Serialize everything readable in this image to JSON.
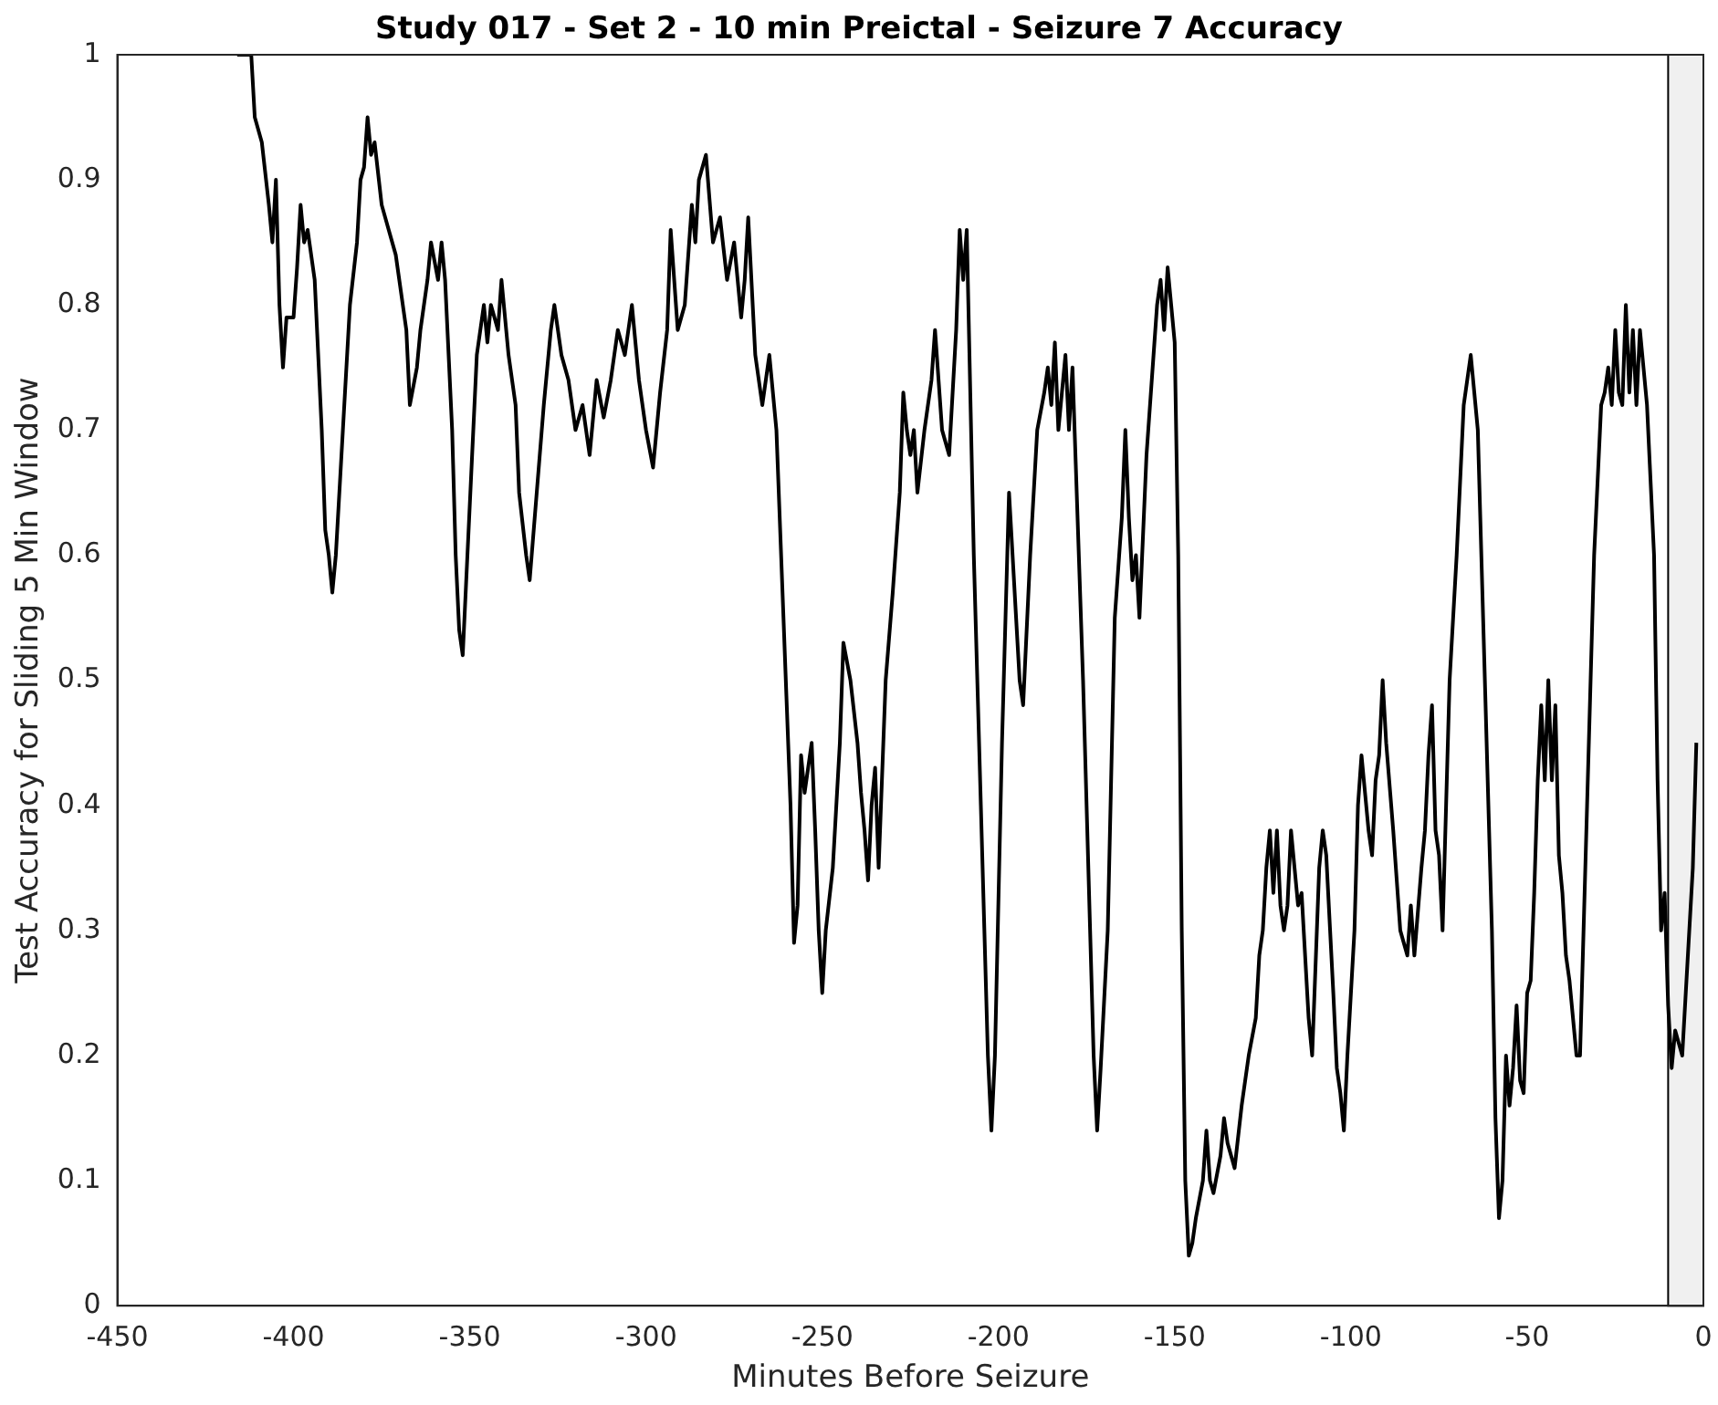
{
  "chart_data": {
    "type": "line",
    "title": "Study 017 - Set 2 - 10 min Preictal -  Seizure 7 Accuracy",
    "xlabel": "Minutes Before Seizure",
    "ylabel": "Test Accuracy for Sliding 5 Min Window",
    "xlim": [
      -450,
      0
    ],
    "xticks": [
      -450,
      -400,
      -350,
      -300,
      -250,
      -200,
      -150,
      -100,
      -50,
      0
    ],
    "ylim": [
      0,
      1
    ],
    "yticks": [
      0,
      0.1,
      0.2,
      0.3,
      0.4,
      0.5,
      0.6,
      0.7,
      0.8,
      0.9,
      1
    ],
    "grid": false,
    "legend": false,
    "marker": "none",
    "line_style": "solid",
    "bands": [
      {
        "axis": "x",
        "from": -10,
        "to": 0,
        "color": "#f0f0f0"
      }
    ],
    "series": [
      {
        "color": "#000000",
        "x": [
          -416,
          -412,
          -411,
          -409,
          -407,
          -406,
          -405,
          -404,
          -403,
          -402,
          -400,
          -399,
          -398,
          -397,
          -396,
          -394,
          -392,
          -391,
          -390,
          -389,
          -388,
          -386,
          -384,
          -382,
          -381,
          -380,
          -379,
          -378,
          -377,
          -375,
          -373,
          -371,
          -369,
          -368,
          -367,
          -365,
          -364,
          -362,
          -361,
          -359,
          -358,
          -357,
          -355,
          -354,
          -353,
          -352,
          -351,
          -349,
          -348,
          -346,
          -345,
          -344,
          -342,
          -341,
          -339,
          -337,
          -336,
          -334,
          -333,
          -331,
          -329,
          -327,
          -326,
          -324,
          -322,
          -320,
          -318,
          -316,
          -314,
          -312,
          -310,
          -308,
          -306,
          -304,
          -302,
          -300,
          -298,
          -296,
          -294,
          -293,
          -291,
          -289,
          -287,
          -286,
          -285,
          -283,
          -281,
          -279,
          -277,
          -275,
          -273,
          -272,
          -271,
          -269,
          -267,
          -265,
          -263,
          -261,
          -259,
          -258,
          -257,
          -256,
          -255,
          -253,
          -252,
          -251,
          -250,
          -249,
          -247,
          -245,
          -244,
          -242,
          -240,
          -239,
          -238,
          -237,
          -236,
          -235,
          -234,
          -232,
          -230,
          -228,
          -227,
          -226,
          -225,
          -224,
          -223,
          -221,
          -219,
          -218,
          -216,
          -214,
          -212,
          -211,
          -210,
          -209,
          -207,
          -205,
          -203,
          -202,
          -201,
          -199,
          -198,
          -197,
          -196,
          -195,
          -194,
          -193,
          -191,
          -189,
          -187,
          -186,
          -185,
          -184,
          -183,
          -182,
          -181,
          -180,
          -179,
          -176,
          -174,
          -173,
          -172,
          -171,
          -169,
          -167,
          -165,
          -164,
          -163,
          -162,
          -161,
          -160,
          -158,
          -156,
          -155,
          -154,
          -153,
          -152,
          -151,
          -150,
          -149,
          -148,
          -147,
          -146,
          -145,
          -144,
          -142,
          -141,
          -140,
          -139,
          -137,
          -136,
          -135,
          -134,
          -133,
          -131,
          -129,
          -127,
          -126,
          -125,
          -124,
          -123,
          -122,
          -121,
          -120,
          -119,
          -118,
          -117,
          -115,
          -114,
          -112,
          -111,
          -109,
          -108,
          -107,
          -105,
          -104,
          -103,
          -102,
          -101,
          -99,
          -98,
          -97,
          -95,
          -94,
          -93,
          -92,
          -91,
          -90,
          -88,
          -86,
          -84,
          -83,
          -82,
          -80,
          -79,
          -78,
          -77,
          -76,
          -75,
          -74,
          -73,
          -72,
          -70,
          -68,
          -67,
          -66,
          -65,
          -64,
          -62,
          -60,
          -59,
          -58,
          -57,
          -56,
          -55,
          -54,
          -53,
          -52,
          -51,
          -50,
          -49,
          -48,
          -47,
          -46,
          -45,
          -44,
          -43,
          -42,
          -41,
          -40,
          -39,
          -38,
          -36,
          -35,
          -34,
          -33,
          -31,
          -29,
          -28,
          -27,
          -26,
          -25,
          -24,
          -23,
          -22,
          -21,
          -20,
          -19,
          -18,
          -16,
          -14,
          -13,
          -12,
          -11,
          -10,
          -9,
          -8,
          -6,
          -5,
          -3,
          -2
        ],
        "values": [
          1,
          1,
          0.95,
          0.93,
          0.88,
          0.85,
          0.9,
          0.8,
          0.75,
          0.79,
          0.79,
          0.83,
          0.88,
          0.85,
          0.86,
          0.82,
          0.7,
          0.62,
          0.6,
          0.57,
          0.6,
          0.7,
          0.8,
          0.85,
          0.9,
          0.91,
          0.95,
          0.92,
          0.93,
          0.88,
          0.86,
          0.84,
          0.8,
          0.78,
          0.72,
          0.75,
          0.78,
          0.82,
          0.85,
          0.82,
          0.85,
          0.82,
          0.7,
          0.6,
          0.54,
          0.52,
          0.58,
          0.7,
          0.76,
          0.8,
          0.77,
          0.8,
          0.78,
          0.82,
          0.76,
          0.72,
          0.65,
          0.6,
          0.58,
          0.65,
          0.72,
          0.78,
          0.8,
          0.76,
          0.74,
          0.7,
          0.72,
          0.68,
          0.74,
          0.71,
          0.74,
          0.78,
          0.76,
          0.8,
          0.74,
          0.7,
          0.67,
          0.73,
          0.78,
          0.86,
          0.78,
          0.8,
          0.88,
          0.85,
          0.9,
          0.92,
          0.85,
          0.87,
          0.82,
          0.85,
          0.79,
          0.82,
          0.87,
          0.76,
          0.72,
          0.76,
          0.7,
          0.55,
          0.4,
          0.29,
          0.32,
          0.44,
          0.41,
          0.45,
          0.38,
          0.3,
          0.25,
          0.3,
          0.35,
          0.45,
          0.53,
          0.5,
          0.45,
          0.41,
          0.38,
          0.34,
          0.4,
          0.43,
          0.35,
          0.5,
          0.57,
          0.65,
          0.73,
          0.7,
          0.68,
          0.7,
          0.65,
          0.7,
          0.74,
          0.78,
          0.7,
          0.68,
          0.78,
          0.86,
          0.82,
          0.86,
          0.6,
          0.4,
          0.2,
          0.14,
          0.2,
          0.45,
          0.55,
          0.65,
          0.6,
          0.55,
          0.5,
          0.48,
          0.6,
          0.7,
          0.73,
          0.75,
          0.72,
          0.77,
          0.7,
          0.73,
          0.76,
          0.7,
          0.75,
          0.5,
          0.3,
          0.2,
          0.14,
          0.19,
          0.3,
          0.55,
          0.63,
          0.7,
          0.63,
          0.58,
          0.6,
          0.55,
          0.68,
          0.76,
          0.8,
          0.82,
          0.78,
          0.83,
          0.8,
          0.77,
          0.6,
          0.3,
          0.1,
          0.04,
          0.05,
          0.07,
          0.1,
          0.14,
          0.1,
          0.09,
          0.12,
          0.15,
          0.13,
          0.12,
          0.11,
          0.16,
          0.2,
          0.23,
          0.28,
          0.3,
          0.35,
          0.38,
          0.33,
          0.38,
          0.32,
          0.3,
          0.32,
          0.38,
          0.32,
          0.33,
          0.23,
          0.2,
          0.35,
          0.38,
          0.36,
          0.25,
          0.19,
          0.17,
          0.14,
          0.2,
          0.3,
          0.4,
          0.44,
          0.38,
          0.36,
          0.42,
          0.44,
          0.5,
          0.45,
          0.38,
          0.3,
          0.28,
          0.32,
          0.28,
          0.35,
          0.38,
          0.44,
          0.48,
          0.38,
          0.36,
          0.3,
          0.4,
          0.5,
          0.6,
          0.72,
          0.74,
          0.76,
          0.73,
          0.7,
          0.5,
          0.3,
          0.15,
          0.07,
          0.1,
          0.2,
          0.16,
          0.19,
          0.24,
          0.18,
          0.17,
          0.25,
          0.26,
          0.33,
          0.42,
          0.48,
          0.42,
          0.5,
          0.42,
          0.48,
          0.36,
          0.33,
          0.28,
          0.26,
          0.2,
          0.2,
          0.3,
          0.4,
          0.6,
          0.72,
          0.73,
          0.75,
          0.72,
          0.78,
          0.73,
          0.72,
          0.8,
          0.73,
          0.78,
          0.72,
          0.78,
          0.72,
          0.6,
          0.42,
          0.3,
          0.33,
          0.24,
          0.19,
          0.22,
          0.2,
          0.25,
          0.35,
          0.45
        ]
      }
    ]
  }
}
